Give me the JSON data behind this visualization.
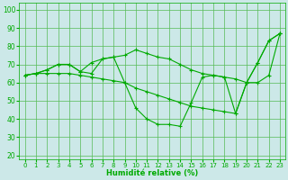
{
  "xlabel": "Humidité relative (%)",
  "background_color": "#cce8e8",
  "grid_color": "#55bb55",
  "line_color": "#00aa00",
  "xlim": [
    -0.5,
    23.5
  ],
  "ylim": [
    18,
    104
  ],
  "xticks": [
    0,
    1,
    2,
    3,
    4,
    5,
    6,
    7,
    8,
    9,
    10,
    11,
    12,
    13,
    14,
    15,
    16,
    17,
    18,
    19,
    20,
    21,
    22,
    23
  ],
  "yticks": [
    20,
    30,
    40,
    50,
    60,
    70,
    80,
    90,
    100
  ],
  "curves": [
    {
      "x": [
        0,
        1,
        2,
        3,
        4,
        5,
        6,
        7,
        8,
        9,
        10,
        11,
        12,
        13,
        14,
        15,
        16,
        17,
        18,
        19,
        20,
        21,
        22,
        23
      ],
      "y": [
        64,
        65,
        67,
        70,
        70,
        66,
        71,
        73,
        74,
        60,
        46,
        40,
        37,
        37,
        36,
        49,
        63,
        64,
        63,
        43,
        60,
        71,
        83,
        87
      ]
    },
    {
      "x": [
        0,
        1,
        2,
        3,
        4,
        5,
        6,
        7,
        8,
        9,
        10,
        11,
        12,
        13,
        14,
        15,
        16,
        17,
        18,
        19,
        20,
        21,
        22,
        23
      ],
      "y": [
        64,
        65,
        67,
        70,
        70,
        66,
        65,
        73,
        74,
        75,
        78,
        76,
        74,
        73,
        70,
        67,
        65,
        64,
        63,
        62,
        60,
        60,
        64,
        87
      ]
    },
    {
      "x": [
        0,
        1,
        2,
        3,
        4,
        5,
        6,
        7,
        8,
        9,
        10,
        11,
        12,
        13,
        14,
        15,
        16,
        17,
        18,
        19,
        20,
        21,
        22,
        23
      ],
      "y": [
        64,
        65,
        65,
        65,
        65,
        64,
        63,
        62,
        61,
        60,
        57,
        55,
        53,
        51,
        49,
        47,
        46,
        45,
        44,
        43,
        60,
        71,
        83,
        87
      ]
    }
  ]
}
